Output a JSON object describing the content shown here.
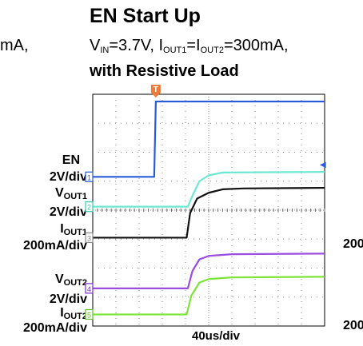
{
  "title": "EN Start Up",
  "subtitle": {
    "vin_prefix": "V",
    "vin_sub": "IN",
    "vin_value": "=3.7V, ",
    "i1_prefix": "I",
    "i1_sub": "OUT1",
    "eq": "=",
    "i2_prefix": "I",
    "i2_sub": "OUT2",
    "i_value": "=300mA,",
    "line2": "with Resistive Load"
  },
  "edge_text": {
    "left": "mA,",
    "right1": "200",
    "right2": "200"
  },
  "chart_data": {
    "type": "line",
    "title": "EN Start Up",
    "xlabel": "40us/div",
    "x_divisions": 10,
    "y_divisions": 8,
    "grid": true,
    "channels": [
      {
        "id": "1",
        "name": "EN",
        "scale": "2V/div",
        "color": "#2a5bd7",
        "marker_color": "#2a5bd7",
        "points": [
          [
            0,
            5.15
          ],
          [
            2.65,
            5.15
          ],
          [
            2.72,
            7.75
          ],
          [
            10,
            7.75
          ]
        ]
      },
      {
        "id": "2",
        "name": "VOUT1",
        "scale": "2V/div",
        "color": "#6ee8d2",
        "marker_color": "#38c9a8",
        "points": [
          [
            0,
            4.12
          ],
          [
            4.1,
            4.12
          ],
          [
            4.3,
            4.5
          ],
          [
            4.6,
            5.0
          ],
          [
            5.0,
            5.2
          ],
          [
            5.6,
            5.3
          ],
          [
            10,
            5.32
          ]
        ]
      },
      {
        "id": "3",
        "name": "IOUT1",
        "scale": "200mA/div",
        "color": "#111111",
        "marker_color": "#888888",
        "points": [
          [
            0,
            3.05
          ],
          [
            4.05,
            3.05
          ],
          [
            4.2,
            3.9
          ],
          [
            4.5,
            4.4
          ],
          [
            5.0,
            4.6
          ],
          [
            5.6,
            4.72
          ],
          [
            6.5,
            4.75
          ],
          [
            10,
            4.77
          ]
        ]
      },
      {
        "id": "4",
        "name": "VOUT2",
        "scale": "2V/div",
        "color": "#9b4de0",
        "marker_color": "#7b2fd0",
        "points": [
          [
            0,
            1.3
          ],
          [
            4.1,
            1.3
          ],
          [
            4.3,
            1.9
          ],
          [
            4.6,
            2.3
          ],
          [
            5.0,
            2.42
          ],
          [
            6.0,
            2.48
          ],
          [
            10,
            2.5
          ]
        ]
      },
      {
        "id": "5",
        "name": "IOUT2",
        "scale": "200mA/div",
        "color": "#7ee43a",
        "marker_color": "#5cc020",
        "points": [
          [
            0,
            0.4
          ],
          [
            4.05,
            0.4
          ],
          [
            4.25,
            1.05
          ],
          [
            4.6,
            1.5
          ],
          [
            5.0,
            1.62
          ],
          [
            6.0,
            1.68
          ],
          [
            10,
            1.7
          ]
        ]
      }
    ],
    "trigger_marker": "T",
    "level_marker": "◀"
  },
  "labels": {
    "en": "EN",
    "en_scale": "2V/div",
    "vout1_p": "V",
    "vout1_s": "OUT1",
    "vout1_scale": "2V/div",
    "iout1_p": "I",
    "iout1_s": "OUT1",
    "iout1_scale": "200mA/div",
    "vout2_p": "V",
    "vout2_s": "OUT2",
    "vout2_scale": "2V/div",
    "iout2_p": "I",
    "iout2_s": "OUT2",
    "iout2_scale": "200mA/div"
  }
}
